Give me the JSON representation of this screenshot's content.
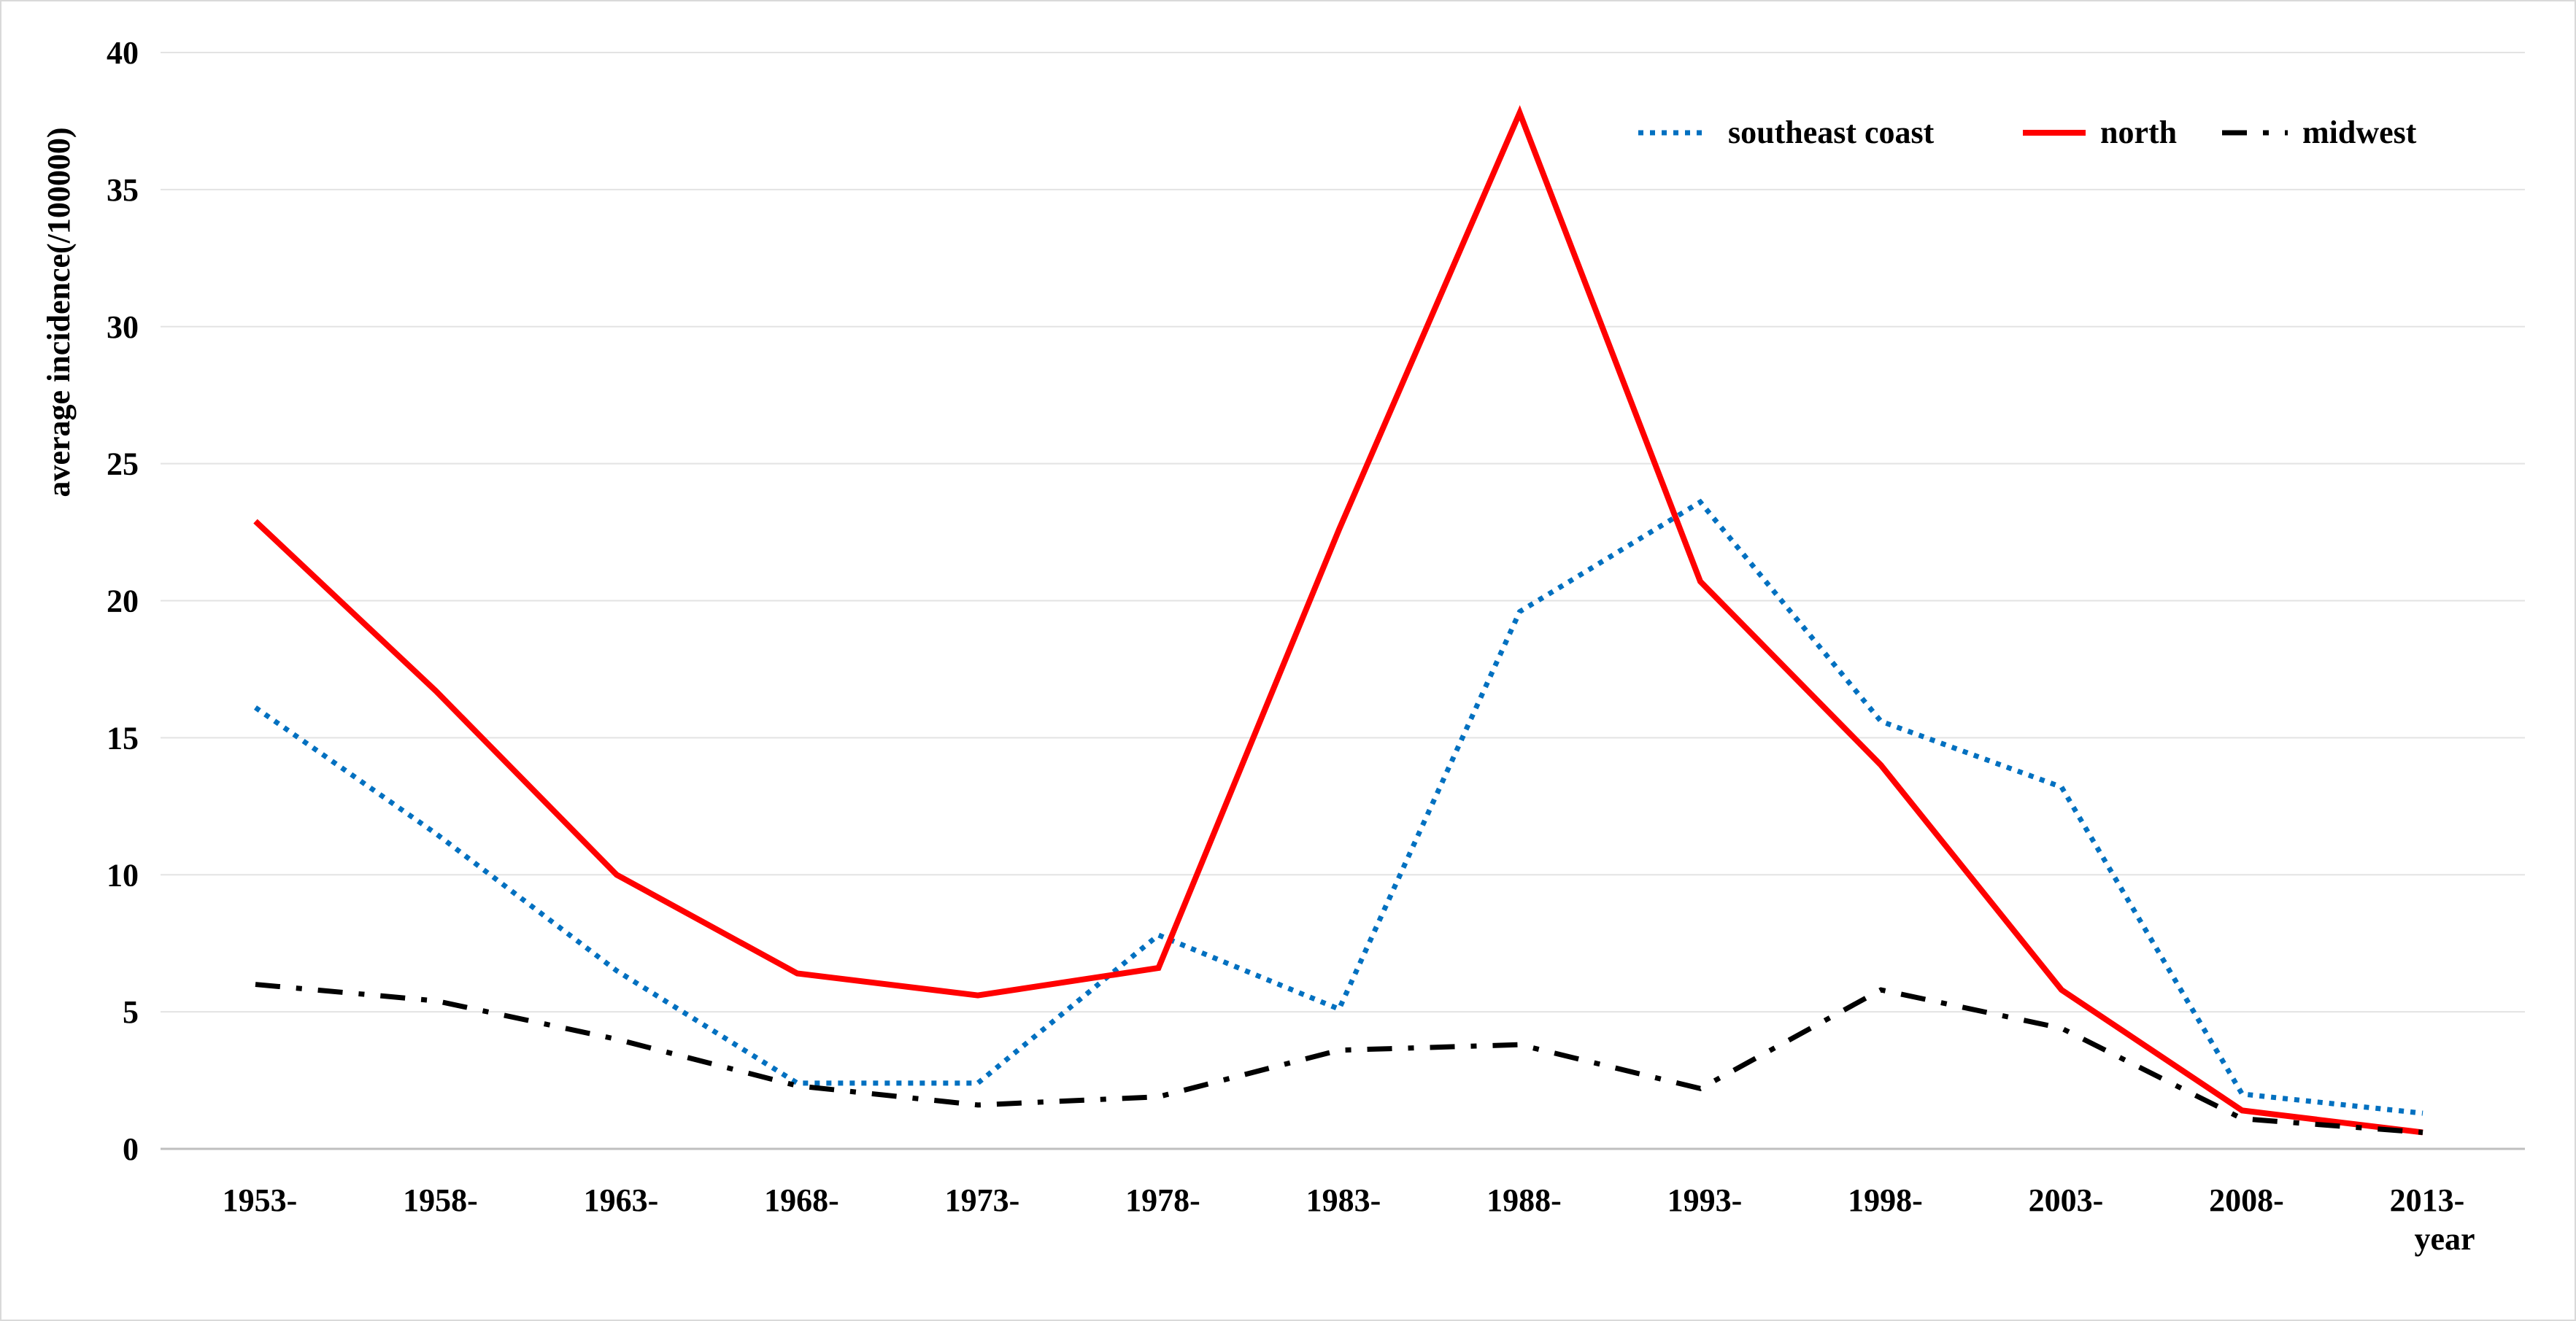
{
  "chart_data": {
    "type": "line",
    "title": "",
    "xlabel": "year",
    "ylabel": "average incidence(/100000)",
    "categories": [
      "1953-",
      "1958-",
      "1963-",
      "1968-",
      "1973-",
      "1978-",
      "1983-",
      "1988-",
      "1993-",
      "1998-",
      "2003-",
      "2008-",
      "2013-"
    ],
    "ylim": [
      0,
      40
    ],
    "yticks": [
      0,
      5,
      10,
      15,
      20,
      25,
      30,
      35,
      40
    ],
    "grid": true,
    "legend_position": "top-right",
    "series": [
      {
        "name": "southeast coast",
        "color": "#0070C0",
        "style": "dotted",
        "values": [
          16.1,
          11.5,
          6.5,
          2.4,
          2.4,
          7.8,
          5.1,
          19.6,
          23.6,
          15.6,
          13.2,
          2.0,
          1.3
        ]
      },
      {
        "name": "north",
        "color": "#FF0000",
        "style": "solid",
        "values": [
          22.9,
          16.7,
          10.0,
          6.4,
          5.6,
          6.6,
          22.6,
          37.8,
          20.7,
          14.0,
          5.8,
          1.4,
          0.6
        ]
      },
      {
        "name": "midwest",
        "color": "#000000",
        "style": "dashdot",
        "values": [
          6.0,
          5.4,
          4.0,
          2.3,
          1.6,
          1.9,
          3.6,
          3.8,
          2.2,
          5.8,
          4.4,
          1.1,
          0.6
        ]
      }
    ]
  }
}
